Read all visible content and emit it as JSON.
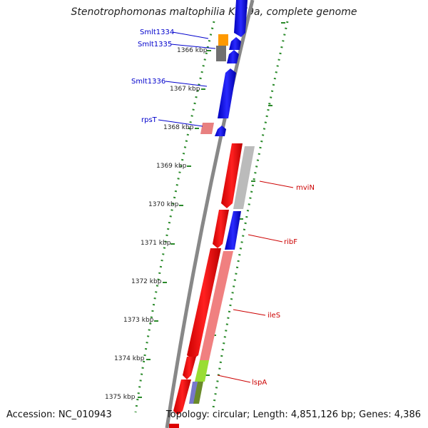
{
  "title": "Stenotrophomonas maltophilia K279a, complete genome",
  "footer": {
    "accession": "Accession: NC_010943",
    "topology": "Topology: circular; Length: 4,851,126 bp; Genes: 4,386"
  },
  "colors": {
    "backbone": "#808080",
    "tick_green": "#2a8a2a",
    "forward_label": "#0000cc",
    "reverse_label": "#cc0000"
  },
  "kbp_ticks": [
    "1366 kbp",
    "1367 kbp",
    "1368 kbp",
    "1369 kbp",
    "1370 kbp",
    "1371 kbp",
    "1372 kbp",
    "1373 kbp",
    "1374 kbp",
    "1375 kbp"
  ],
  "genes": [
    {
      "name": "Smlt1334",
      "strand": "forward",
      "color": "#ff9900"
    },
    {
      "name": "Smlt1335",
      "strand": "forward",
      "color": "#666666"
    },
    {
      "name": "Smlt1336",
      "strand": "forward",
      "color": "#0000ff"
    },
    {
      "name": "rpsT",
      "strand": "forward",
      "color": "#e88080"
    },
    {
      "name": "mviN",
      "strand": "reverse",
      "color": "#bbbbbb"
    },
    {
      "name": "ribF",
      "strand": "reverse",
      "color": "#0000ff"
    },
    {
      "name": "ileS",
      "strand": "reverse",
      "color": "#f08080"
    },
    {
      "name": "lspA",
      "strand": "reverse",
      "color": "#99dd33"
    }
  ]
}
